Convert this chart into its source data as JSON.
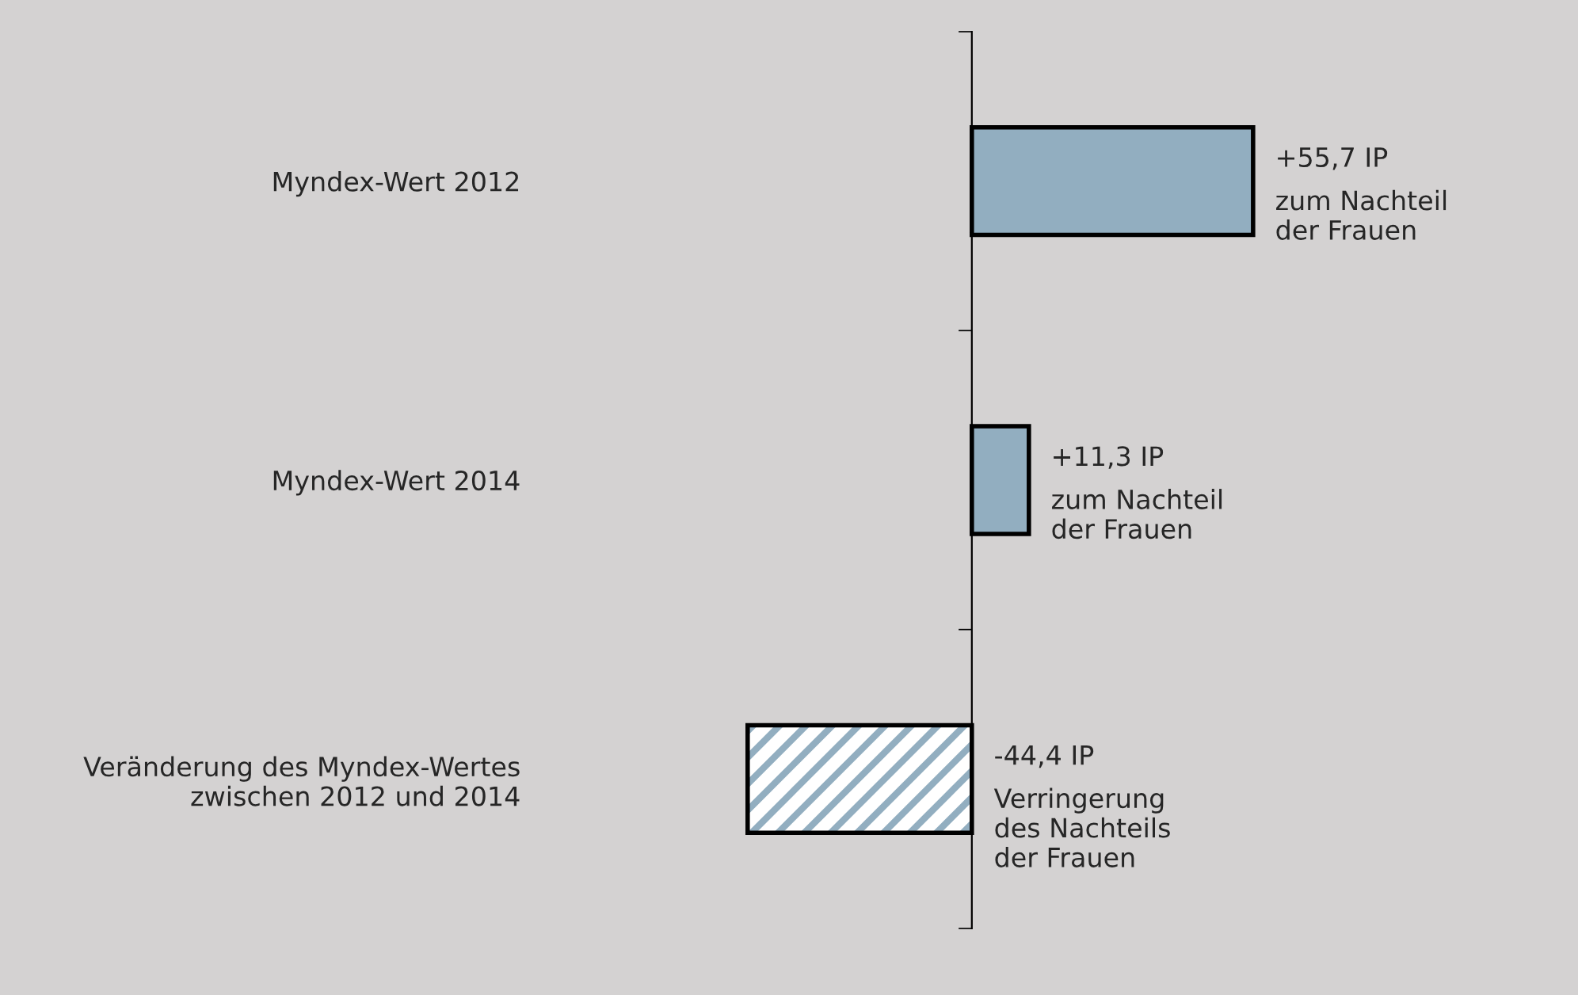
{
  "chart_data": {
    "type": "bar",
    "orientation": "horizontal",
    "categories": [
      "Myndex-Wert 2012",
      "Myndex-Wert 2014",
      "Veränderung des Myndex-Wertes\nzwischen 2012 und 2014"
    ],
    "values": [
      55.7,
      11.3,
      -44.4
    ],
    "colors": [
      "#92aec0",
      "#92aec0",
      "#92aec0"
    ],
    "value_labels": [
      "+55,7 IP",
      "+11,3 IP",
      "-44,4 IP"
    ],
    "annotations": [
      "zum Nachteil\nder Frauen",
      "zum Nachteil\nder Frauen",
      "Verringerung\ndes Nachteils\nder Frauen"
    ],
    "tick_labels": "y",
    "grid": false,
    "legend": false
  }
}
